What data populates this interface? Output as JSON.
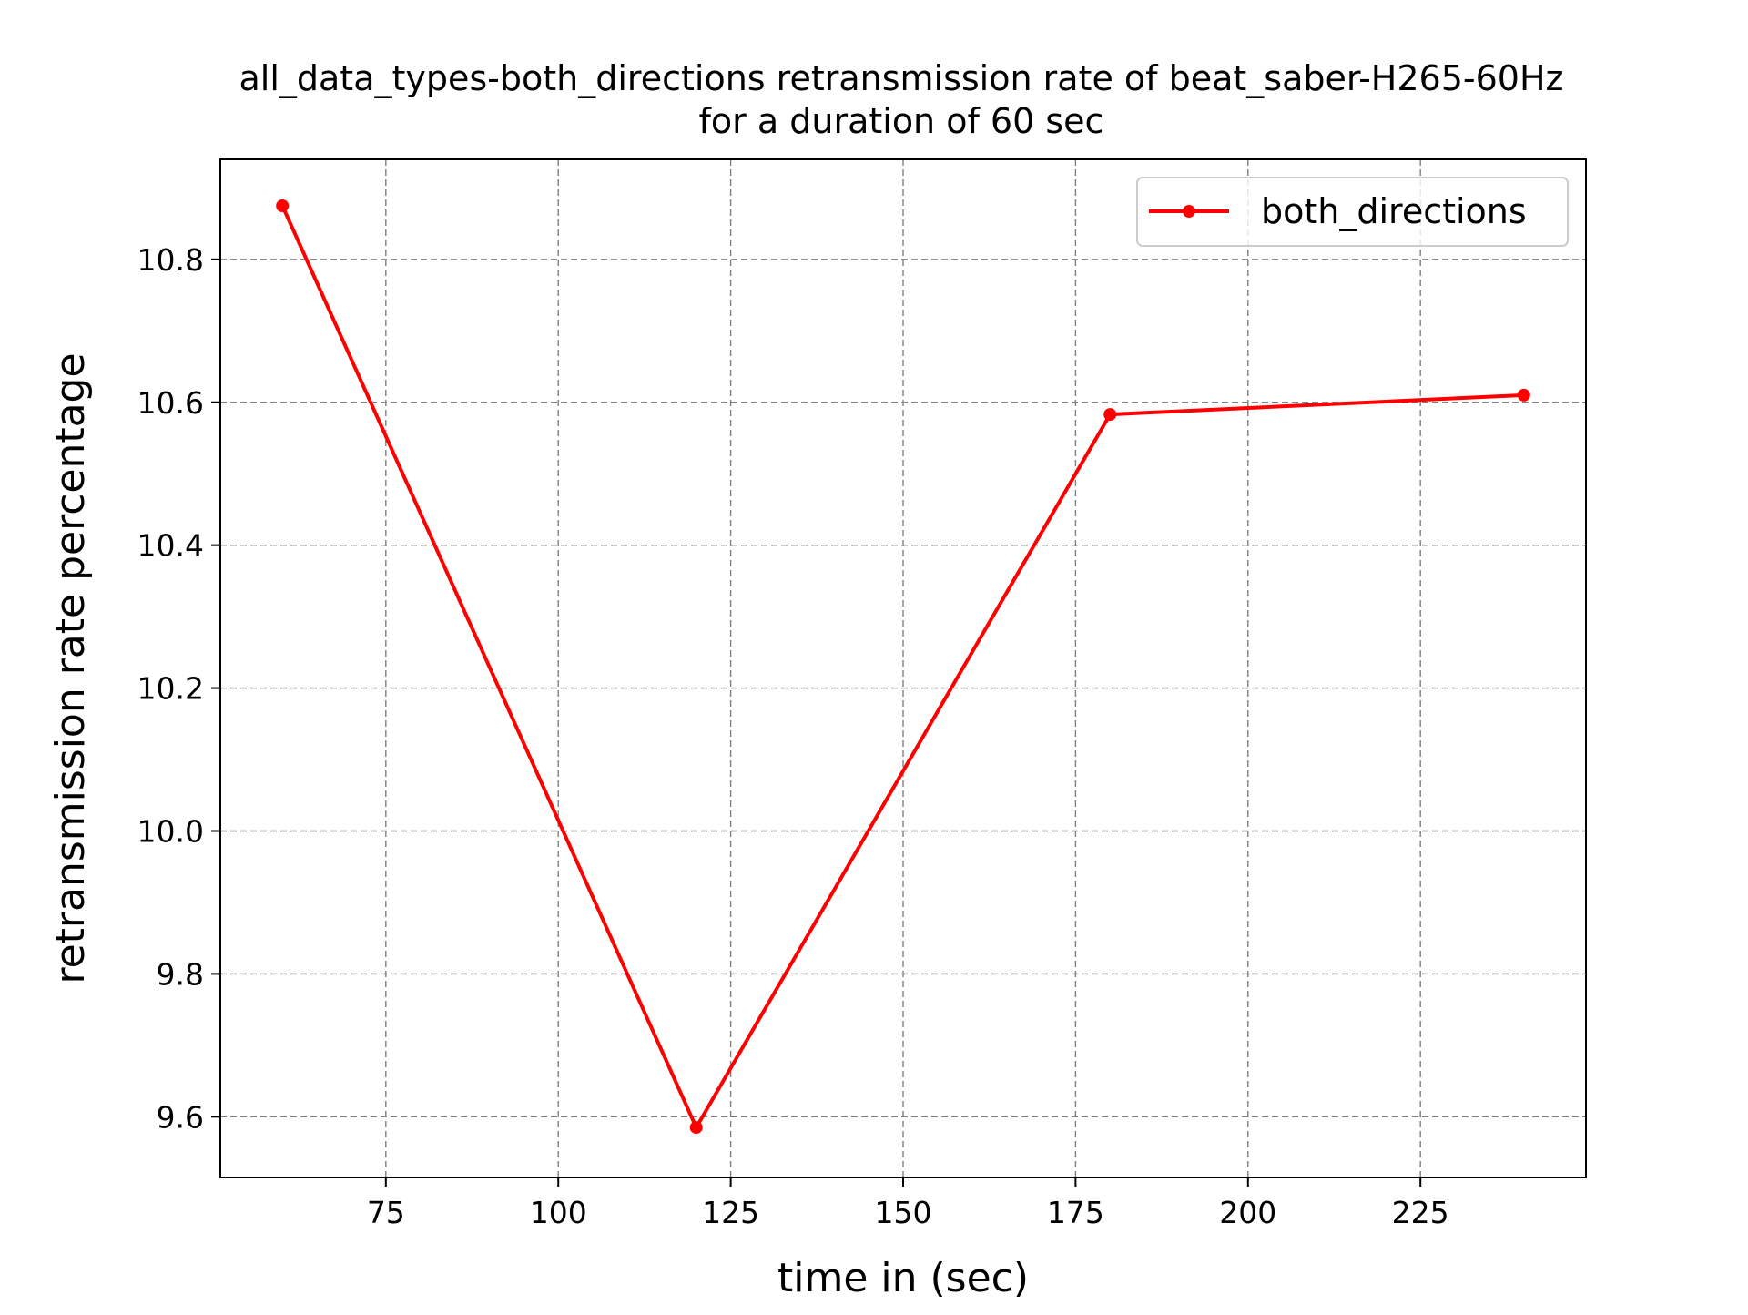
{
  "chart_data": {
    "type": "line",
    "title_line1": "all_data_types-both_directions retransmission rate of beat_saber-H265-60Hz",
    "title_line2": "for a duration of 60 sec",
    "xlabel": "time in (sec)",
    "ylabel": "retransmission rate percentage",
    "xlim": [
      51,
      249
    ],
    "ylim": [
      9.515,
      10.94
    ],
    "x_ticks": [
      {
        "value": 75,
        "label": "75"
      },
      {
        "value": 100,
        "label": "100"
      },
      {
        "value": 125,
        "label": "125"
      },
      {
        "value": 150,
        "label": "150"
      },
      {
        "value": 175,
        "label": "175"
      },
      {
        "value": 200,
        "label": "200"
      },
      {
        "value": 225,
        "label": "225"
      }
    ],
    "y_ticks": [
      {
        "value": 9.6,
        "label": "9.6"
      },
      {
        "value": 9.8,
        "label": "9.8"
      },
      {
        "value": 10.0,
        "label": "10.0"
      },
      {
        "value": 10.2,
        "label": "10.2"
      },
      {
        "value": 10.4,
        "label": "10.4"
      },
      {
        "value": 10.6,
        "label": "10.6"
      },
      {
        "value": 10.8,
        "label": "10.8"
      }
    ],
    "grid": true,
    "legend_position": "top-right",
    "series": [
      {
        "name": "both_directions",
        "color": "#ff0000",
        "marker": "circle",
        "points": [
          {
            "x": 60,
            "y": 10.875
          },
          {
            "x": 120,
            "y": 9.585
          },
          {
            "x": 180,
            "y": 10.583
          },
          {
            "x": 240,
            "y": 10.61
          }
        ]
      }
    ]
  }
}
